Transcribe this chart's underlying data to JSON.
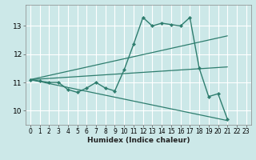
{
  "xlabel": "Humidex (Indice chaleur)",
  "ylabel": "",
  "background_color": "#cce8e8",
  "grid_color": "#ffffff",
  "line_color": "#2e7d6e",
  "xlim": [
    -0.5,
    23.5
  ],
  "ylim": [
    9.5,
    13.75
  ],
  "yticks": [
    10,
    11,
    12,
    13
  ],
  "xticks": [
    0,
    1,
    2,
    3,
    4,
    5,
    6,
    7,
    8,
    9,
    10,
    11,
    12,
    13,
    14,
    15,
    16,
    17,
    18,
    19,
    20,
    21,
    22,
    23
  ],
  "main_series": {
    "x": [
      0,
      1,
      2,
      3,
      4,
      5,
      6,
      7,
      8,
      9,
      10,
      11,
      12,
      13,
      14,
      15,
      16,
      17,
      18,
      19,
      20,
      21
    ],
    "y": [
      11.1,
      11.05,
      11.0,
      11.0,
      10.75,
      10.65,
      10.8,
      11.0,
      10.8,
      10.7,
      11.45,
      12.35,
      13.3,
      13.0,
      13.1,
      13.05,
      13.0,
      13.3,
      11.5,
      10.5,
      10.6,
      9.7
    ]
  },
  "trend_lines": [
    {
      "x": [
        0,
        21
      ],
      "y": [
        11.1,
        12.65
      ]
    },
    {
      "x": [
        0,
        21
      ],
      "y": [
        11.1,
        11.55
      ]
    },
    {
      "x": [
        0,
        21
      ],
      "y": [
        11.1,
        9.65
      ]
    }
  ]
}
